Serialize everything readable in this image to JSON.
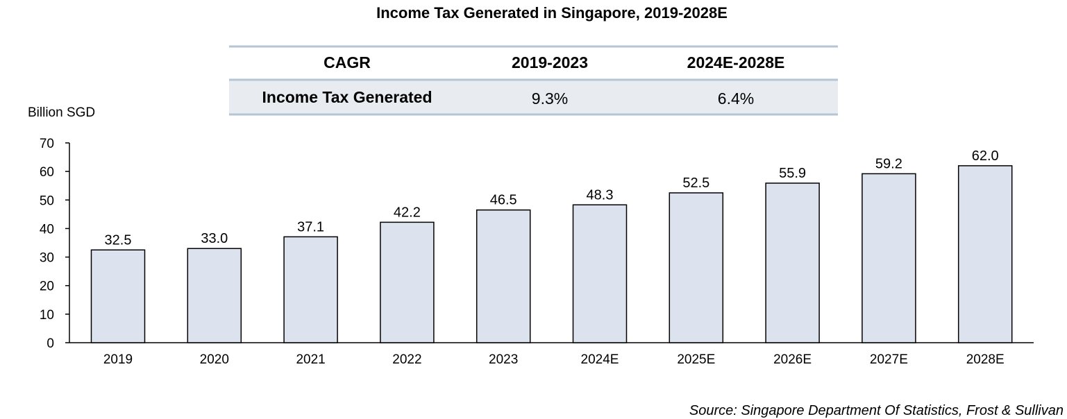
{
  "chart_data": {
    "type": "bar",
    "title": "Income Tax Generated in Singapore, 2019-2028E",
    "ylabel": "Billion SGD",
    "xlabel": "",
    "ylim": [
      0,
      70
    ],
    "yticks": [
      0,
      10,
      20,
      30,
      40,
      50,
      60,
      70
    ],
    "grid": false,
    "categories": [
      "2019",
      "2020",
      "2021",
      "2022",
      "2023",
      "2024E",
      "2025E",
      "2026E",
      "2027E",
      "2028E"
    ],
    "values": [
      32.5,
      33.0,
      37.1,
      42.2,
      46.5,
      48.3,
      52.5,
      55.9,
      59.2,
      62.0
    ],
    "value_labels": [
      "32.5",
      "33.0",
      "37.1",
      "42.2",
      "46.5",
      "48.3",
      "52.5",
      "55.9",
      "59.2",
      "62.0"
    ],
    "bar_color": "#dde3ee"
  },
  "cagr_table": {
    "header": [
      "CAGR",
      "2019-2023",
      "2024E-2028E"
    ],
    "row": {
      "label": "Income Tax Generated",
      "values": [
        "9.3%",
        "6.4%"
      ]
    }
  },
  "source": "Source: Singapore Department Of Statistics, Frost & Sullivan",
  "colors": {
    "table_rule": "#b3c5d6",
    "table_row_bg": "#e8ecf1",
    "bar_fill": "#dde3ee",
    "bar_stroke": "#000000"
  }
}
